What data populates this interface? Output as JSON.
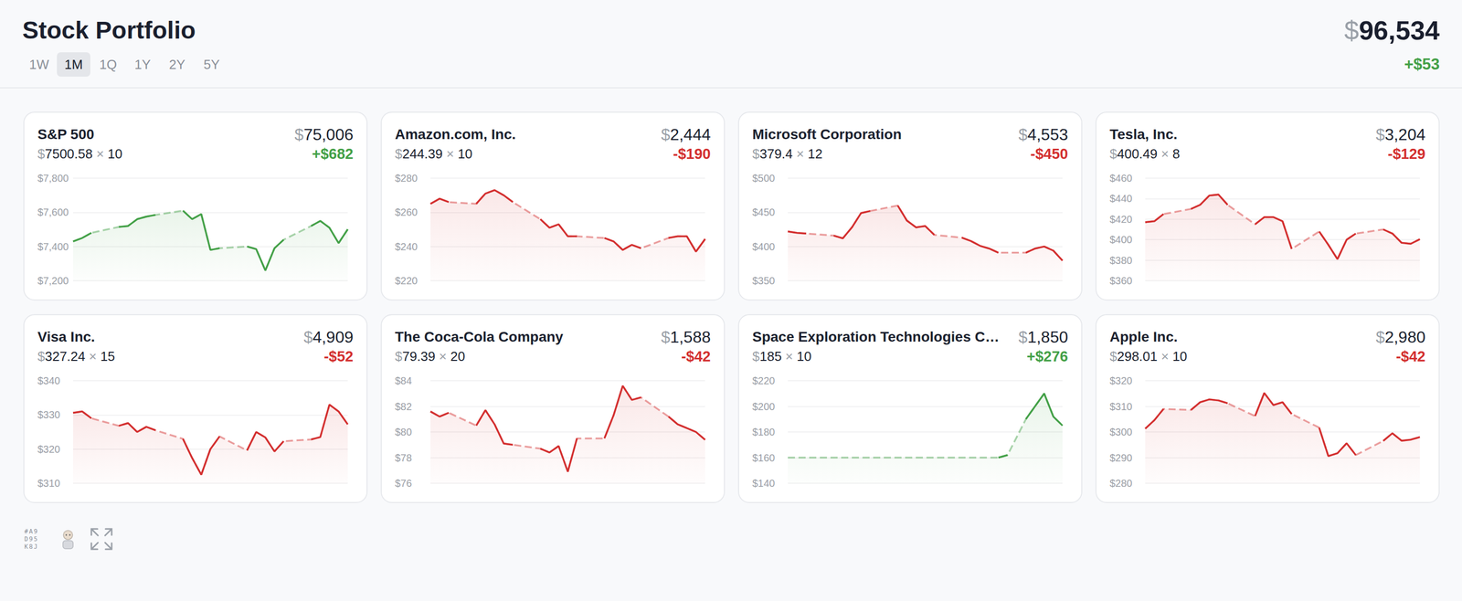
{
  "header": {
    "title": "Stock Portfolio",
    "periods": [
      "1W",
      "1M",
      "1Q",
      "1Y",
      "2Y",
      "5Y"
    ],
    "selected_period": "1M",
    "total": "$96,534",
    "change": "+$53",
    "change_color": "#43a047"
  },
  "footer": {
    "code": [
      "#A9",
      "D95",
      "K8J"
    ]
  },
  "chart_data": [
    {
      "type": "line",
      "title": "S&P 500",
      "price": "$7500.58",
      "quantity": "× 10",
      "value": "$75,006",
      "change": "+$682",
      "color": "#43a047",
      "grid": true,
      "tick_labels": "y",
      "ylim": [
        7200,
        7800
      ],
      "yticks": [
        {
          "value": 7200,
          "label": "$7,200"
        },
        {
          "value": 7400,
          "label": "$7,400"
        },
        {
          "value": 7600,
          "label": "$7,600"
        },
        {
          "value": 7800,
          "label": "$7,800"
        }
      ],
      "values": [
        7430,
        7450,
        7480,
        null,
        null,
        7515,
        7520,
        7560,
        7575,
        7585,
        null,
        null,
        7610,
        7560,
        7590,
        7380,
        7390,
        null,
        null,
        7400,
        7385,
        7260,
        7390,
        7440,
        null,
        null,
        7520,
        7550,
        7510,
        7420,
        7500.58
      ]
    },
    {
      "type": "line",
      "title": "Amazon.com, Inc.",
      "price": "$244.39",
      "quantity": "× 10",
      "value": "$2,444",
      "change": "-$190",
      "color": "#d32f2f",
      "grid": true,
      "tick_labels": "y",
      "ylim": [
        220,
        280
      ],
      "yticks": [
        {
          "value": 220,
          "label": "$220"
        },
        {
          "value": 240,
          "label": "$240"
        },
        {
          "value": 260,
          "label": "$260"
        },
        {
          "value": 280,
          "label": "$280"
        }
      ],
      "values": [
        265,
        268,
        266,
        null,
        null,
        265,
        271,
        273,
        270,
        266,
        null,
        null,
        256,
        251,
        253,
        246,
        246,
        null,
        null,
        245,
        243,
        238,
        241,
        239,
        null,
        null,
        245,
        246,
        246,
        237,
        244.39
      ]
    },
    {
      "type": "line",
      "title": "Microsoft Corporation",
      "price": "$379.4",
      "quantity": "× 12",
      "value": "$4,553",
      "change": "-$450",
      "color": "#d32f2f",
      "grid": true,
      "tick_labels": "y",
      "ylim": [
        350,
        500
      ],
      "yticks": [
        {
          "value": 350,
          "label": "$350"
        },
        {
          "value": 400,
          "label": "$400"
        },
        {
          "value": 450,
          "label": "$450"
        },
        {
          "value": 500,
          "label": "$500"
        }
      ],
      "values": [
        422,
        420,
        419,
        null,
        null,
        416,
        412,
        428,
        449,
        452,
        null,
        null,
        460,
        438,
        428,
        430,
        417,
        null,
        null,
        413,
        408,
        401,
        397,
        391,
        null,
        null,
        391,
        397,
        400,
        394,
        379.4
      ]
    },
    {
      "type": "line",
      "title": "Tesla, Inc.",
      "price": "$400.49",
      "quantity": "× 8",
      "value": "$3,204",
      "change": "-$129",
      "color": "#d32f2f",
      "grid": true,
      "tick_labels": "y",
      "ylim": [
        360,
        460
      ],
      "yticks": [
        {
          "value": 360,
          "label": "$360"
        },
        {
          "value": 380,
          "label": "$380"
        },
        {
          "value": 400,
          "label": "$400"
        },
        {
          "value": 420,
          "label": "$420"
        },
        {
          "value": 440,
          "label": "$440"
        },
        {
          "value": 460,
          "label": "$460"
        }
      ],
      "values": [
        417,
        418,
        425,
        null,
        null,
        430,
        434,
        443,
        444,
        434,
        null,
        null,
        415,
        422,
        422,
        418,
        391,
        null,
        null,
        408,
        395,
        381,
        400,
        406,
        null,
        null,
        410,
        406,
        397,
        396,
        400.49
      ]
    },
    {
      "type": "line",
      "title": "Visa Inc.",
      "price": "$327.24",
      "quantity": "× 15",
      "value": "$4,909",
      "change": "-$52",
      "color": "#d32f2f",
      "grid": true,
      "tick_labels": "y",
      "ylim": [
        310,
        340
      ],
      "yticks": [
        {
          "value": 310,
          "label": "$310"
        },
        {
          "value": 320,
          "label": "$320"
        },
        {
          "value": 330,
          "label": "$330"
        },
        {
          "value": 340,
          "label": "$340"
        }
      ],
      "values": [
        330.6,
        331,
        329,
        null,
        null,
        326.8,
        327.6,
        325,
        326.5,
        325.5,
        null,
        null,
        323,
        317.4,
        312.5,
        320,
        323.7,
        null,
        null,
        319.6,
        325,
        323.4,
        319.3,
        322.3,
        null,
        null,
        322.8,
        323.5,
        333,
        331,
        327.24
      ]
    },
    {
      "type": "line",
      "title": "The Coca-Cola Company",
      "price": "$79.39",
      "quantity": "× 20",
      "value": "$1,588",
      "change": "-$42",
      "color": "#d32f2f",
      "grid": true,
      "tick_labels": "y",
      "ylim": [
        76,
        84
      ],
      "yticks": [
        {
          "value": 76,
          "label": "$76"
        },
        {
          "value": 78,
          "label": "$78"
        },
        {
          "value": 80,
          "label": "$80"
        },
        {
          "value": 82,
          "label": "$82"
        },
        {
          "value": 84,
          "label": "$84"
        }
      ],
      "values": [
        81.6,
        81.2,
        81.5,
        null,
        null,
        80.5,
        81.7,
        80.6,
        79.1,
        79.0,
        null,
        null,
        78.7,
        78.4,
        78.9,
        76.9,
        79.5,
        null,
        null,
        79.5,
        81.3,
        83.6,
        82.5,
        82.7,
        null,
        null,
        81.2,
        80.6,
        80.3,
        80.0,
        79.39
      ]
    },
    {
      "type": "line",
      "title": "Space Exploration Technologies C…",
      "price": "$185",
      "quantity": "× 10",
      "value": "$1,850",
      "change": "+$276",
      "color": "#43a047",
      "grid": true,
      "tick_labels": "y",
      "ylim": [
        140,
        220
      ],
      "yticks": [
        {
          "value": 140,
          "label": "$140"
        },
        {
          "value": 160,
          "label": "$160"
        },
        {
          "value": 180,
          "label": "$180"
        },
        {
          "value": 200,
          "label": "$200"
        },
        {
          "value": 220,
          "label": "$220"
        }
      ],
      "values": [
        160,
        null,
        null,
        null,
        null,
        null,
        null,
        null,
        null,
        null,
        null,
        null,
        null,
        null,
        null,
        null,
        null,
        null,
        null,
        null,
        null,
        null,
        null,
        160,
        162,
        null,
        190,
        200,
        210,
        192,
        185
      ]
    },
    {
      "type": "line",
      "title": "Apple Inc.",
      "price": "$298.01",
      "quantity": "× 10",
      "value": "$2,980",
      "change": "-$42",
      "color": "#d32f2f",
      "grid": true,
      "tick_labels": "y",
      "ylim": [
        280,
        320
      ],
      "yticks": [
        {
          "value": 280,
          "label": "$280"
        },
        {
          "value": 290,
          "label": "$290"
        },
        {
          "value": 300,
          "label": "$300"
        },
        {
          "value": 310,
          "label": "$310"
        },
        {
          "value": 320,
          "label": "$320"
        }
      ],
      "values": [
        301.3,
        304.6,
        309,
        null,
        null,
        308.6,
        311.6,
        312.7,
        312.3,
        311.2,
        null,
        null,
        306.2,
        315.2,
        310.5,
        311.6,
        307,
        null,
        null,
        301.7,
        290.6,
        291.7,
        295.6,
        291,
        null,
        null,
        296.5,
        299.5,
        296.6,
        297,
        298.01
      ]
    }
  ]
}
